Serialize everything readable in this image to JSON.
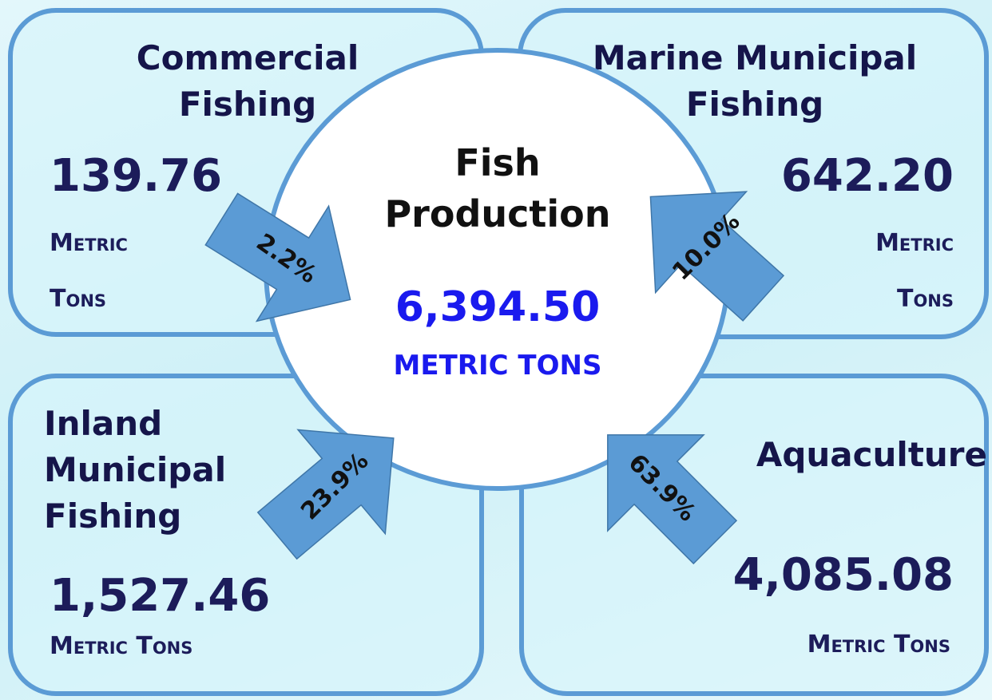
{
  "center": {
    "title": "Fish Production",
    "value": "6,394.50",
    "unit": "METRIC TONS"
  },
  "sources": [
    {
      "title": "Commercial Fishing",
      "value": "139.76",
      "unit": "Metric Tons",
      "share": "2.2%"
    },
    {
      "title": "Marine Municipal Fishing",
      "value": "642.20",
      "unit": "Metric Tons",
      "share": "10.0%"
    },
    {
      "title": "Inland Municipal Fishing",
      "value": "1,527.46",
      "unit": "Metric Tons",
      "share": "23.9%"
    },
    {
      "title": "Aquaculture",
      "value": "4,085.08",
      "unit": "Metric Tons",
      "share": "63.9%"
    }
  ]
}
